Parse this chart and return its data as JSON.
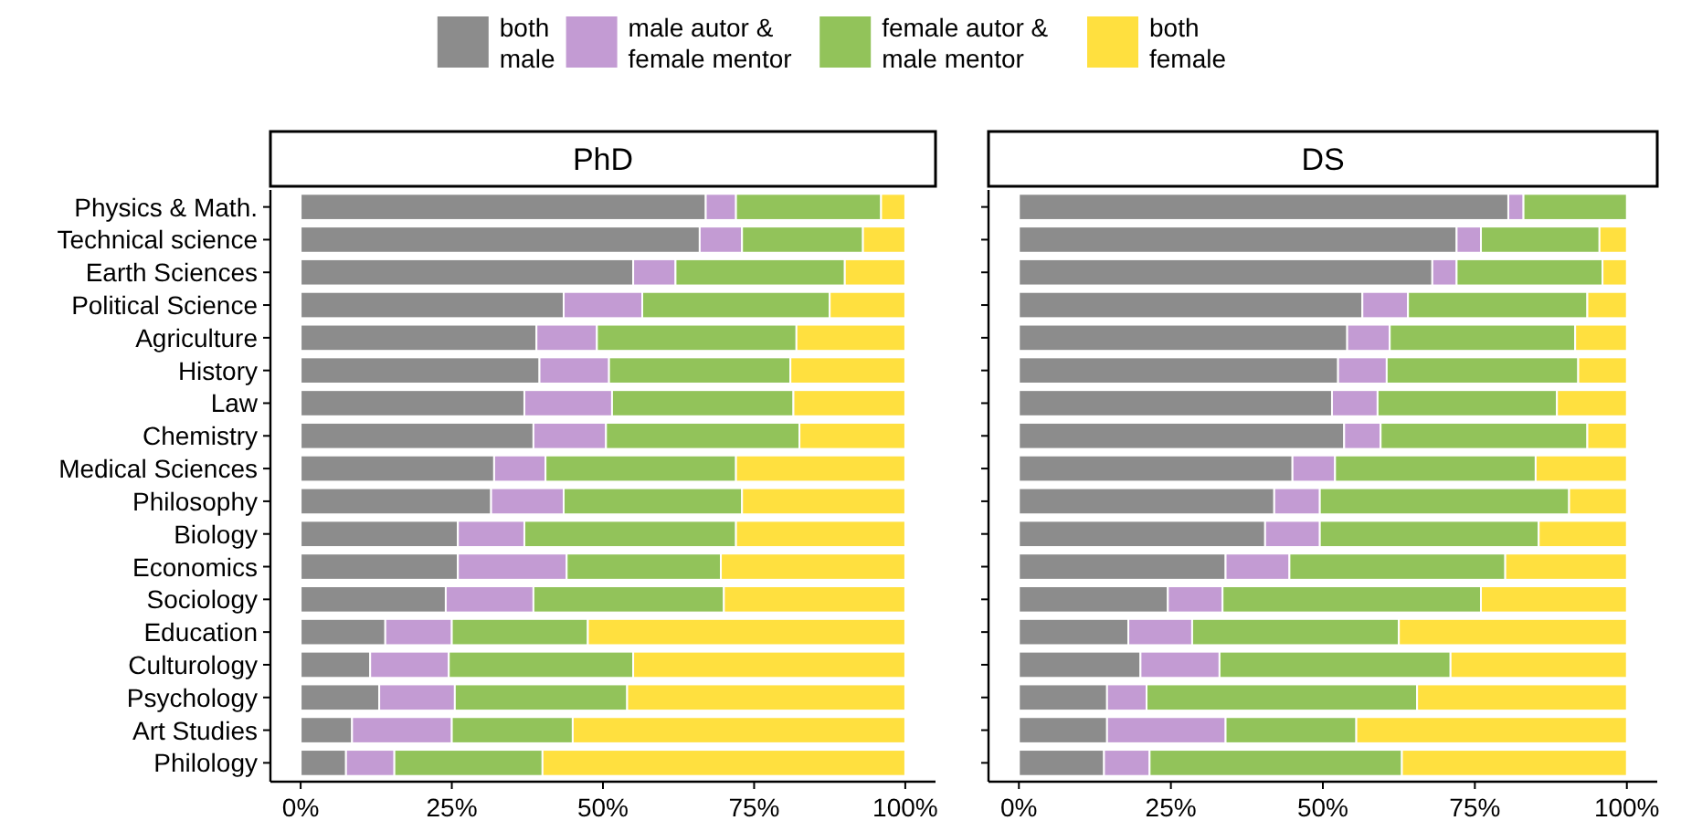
{
  "chart_data": [
    {
      "type": "bar",
      "orientation": "horizontal",
      "stacked": true,
      "title": "PhD",
      "legend": "top",
      "grid": false,
      "categories": [
        "Physics & Math.",
        "Technical science",
        "Earth Sciences",
        "Political Science",
        "Agriculture",
        "History",
        "Law",
        "Chemistry",
        "Medical Sciences",
        "Philosophy",
        "Biology",
        "Economics",
        "Sociology",
        "Education",
        "Culturology",
        "Psychology",
        "Art Studies",
        "Philology"
      ],
      "xlim": [
        -5,
        105
      ],
      "xticks": [
        {
          "value": 0,
          "label": "0%"
        },
        {
          "value": 25,
          "label": "25%"
        },
        {
          "value": 50,
          "label": "50%"
        },
        {
          "value": 75,
          "label": "75%"
        },
        {
          "value": 100,
          "label": "100%"
        }
      ],
      "series": [
        {
          "name": "both male",
          "color": "#8c8c8c",
          "values": [
            67,
            66,
            55,
            43.5,
            39,
            39.5,
            37,
            38.5,
            32,
            31.5,
            26,
            26,
            24,
            14,
            11.5,
            13,
            8.5,
            7.5
          ]
        },
        {
          "name": "male autor & female mentor",
          "color": "#c39bd3",
          "values": [
            5,
            7,
            7,
            13,
            10,
            11.5,
            14.5,
            12,
            8.5,
            12,
            11,
            18,
            14.5,
            11,
            13,
            12.5,
            16.5,
            8
          ]
        },
        {
          "name": "female autor & male mentor",
          "color": "#92c35a",
          "values": [
            24,
            20,
            28,
            31,
            33,
            30,
            30,
            32,
            31.5,
            29.5,
            35,
            25.5,
            31.5,
            22.5,
            30.5,
            28.5,
            20,
            24.5
          ]
        },
        {
          "name": "both female",
          "color": "#ffe03f",
          "values": [
            4,
            7,
            10,
            12.5,
            18,
            19,
            18.5,
            17.5,
            28,
            27,
            28,
            30.5,
            30,
            52.5,
            45,
            46,
            55,
            60
          ]
        }
      ]
    },
    {
      "type": "bar",
      "orientation": "horizontal",
      "stacked": true,
      "title": "DS",
      "grid": false,
      "categories": [
        null,
        null,
        null,
        null,
        null,
        null,
        null,
        null,
        null,
        null,
        null,
        null,
        null,
        null,
        null,
        null,
        null,
        null
      ],
      "xlim": [
        -5,
        105
      ],
      "xticks": [
        {
          "value": 0,
          "label": "0%"
        },
        {
          "value": 25,
          "label": "25%"
        },
        {
          "value": 50,
          "label": "50%"
        },
        {
          "value": 75,
          "label": "75%"
        },
        {
          "value": 100,
          "label": "100%"
        }
      ],
      "series": [
        {
          "color": "#8c8c8c",
          "values": [
            80.5,
            72,
            68,
            56.5,
            54,
            52.5,
            51.5,
            53.5,
            45,
            42,
            40.5,
            34,
            24.5,
            18,
            20,
            14.5,
            14.5,
            14
          ]
        },
        {
          "color": "#c39bd3",
          "values": [
            2.5,
            4,
            4,
            7.5,
            7,
            8,
            7.5,
            6,
            7,
            7.5,
            9,
            10.5,
            9,
            10.5,
            13,
            6.5,
            19.5,
            7.5
          ]
        },
        {
          "color": "#92c35a",
          "values": [
            17,
            19.5,
            24,
            29.5,
            30.5,
            31.5,
            29.5,
            34,
            33,
            41,
            36,
            35.5,
            42.5,
            34,
            38,
            44.5,
            21.5,
            41.5
          ]
        },
        {
          "color": "#ffe03f",
          "values": [
            0,
            4.5,
            4,
            6.5,
            8.5,
            8,
            11.5,
            6.5,
            15,
            9.5,
            14.5,
            20,
            24,
            37.5,
            29,
            34.5,
            44.5,
            37
          ]
        }
      ]
    }
  ]
}
